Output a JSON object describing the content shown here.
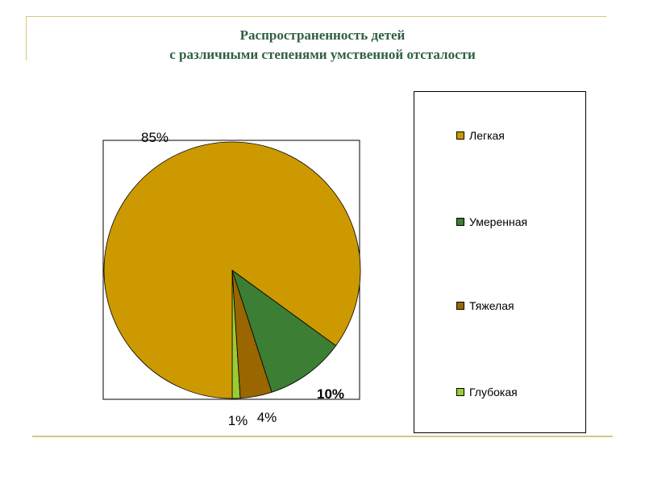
{
  "title": {
    "line1": "Распространенность детей",
    "line2": "с различными степенями  умственной отсталости"
  },
  "chart_data": {
    "type": "pie",
    "title": "Распространенность детей с различными степенями  умственной отсталости",
    "legend_placement": "right",
    "slices": [
      {
        "name": "Легкая",
        "value": 85,
        "label": "85%",
        "color": "#cc9900"
      },
      {
        "name": "Умеренная",
        "value": 10,
        "label": "10%",
        "color": "#3c7e33"
      },
      {
        "name": "Тяжелая",
        "value": 4,
        "label": "4%",
        "color": "#996600"
      },
      {
        "name": "Глубокая",
        "value": 1,
        "label": "1%",
        "color": "#99cc33"
      }
    ]
  }
}
